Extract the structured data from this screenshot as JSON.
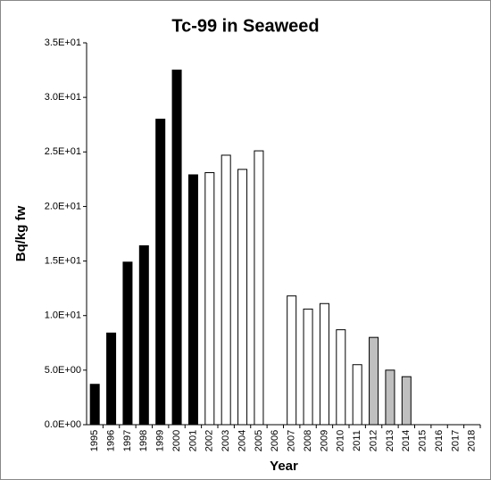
{
  "chart_data": {
    "type": "bar",
    "title": "Tc-99 in Seaweed",
    "x_label": "Year",
    "y_label": "Bq/kg fw",
    "categories": [
      "1995",
      "1996",
      "1997",
      "1998",
      "1999",
      "2000",
      "2001",
      "2002",
      "2003",
      "2004",
      "2005",
      "2006",
      "2007",
      "2008",
      "2009",
      "2010",
      "2011",
      "2012",
      "2013",
      "2014",
      "2015",
      "2016",
      "2017",
      "2018"
    ],
    "values": [
      3.7,
      8.4,
      14.9,
      16.4,
      28.0,
      32.5,
      22.9,
      23.1,
      24.7,
      23.4,
      25.1,
      null,
      11.8,
      10.6,
      11.1,
      8.7,
      5.5,
      8.0,
      5.0,
      4.4,
      null,
      null,
      null,
      null
    ],
    "colors": [
      "#000000",
      "#000000",
      "#000000",
      "#000000",
      "#000000",
      "#000000",
      "#000000",
      "#ffffff",
      "#ffffff",
      "#ffffff",
      "#ffffff",
      "#ffffff",
      "#ffffff",
      "#ffffff",
      "#ffffff",
      "#ffffff",
      "#ffffff",
      "#bfbfbf",
      "#bfbfbf",
      "#bfbfbf",
      "#ffffff",
      "#ffffff",
      "#ffffff",
      "#ffffff"
    ],
    "ylim": [
      0,
      35
    ],
    "yticks": [
      {
        "value": 0,
        "label": "0.0E+00"
      },
      {
        "value": 5,
        "label": "5.0E+00"
      },
      {
        "value": 10,
        "label": "1.0E+01"
      },
      {
        "value": 15,
        "label": "1.5E+01"
      },
      {
        "value": 20,
        "label": "2.0E+01"
      },
      {
        "value": 25,
        "label": "2.5E+01"
      },
      {
        "value": 30,
        "label": "3.0E+01"
      },
      {
        "value": 35,
        "label": "3.5E+01"
      }
    ],
    "grid": false
  }
}
